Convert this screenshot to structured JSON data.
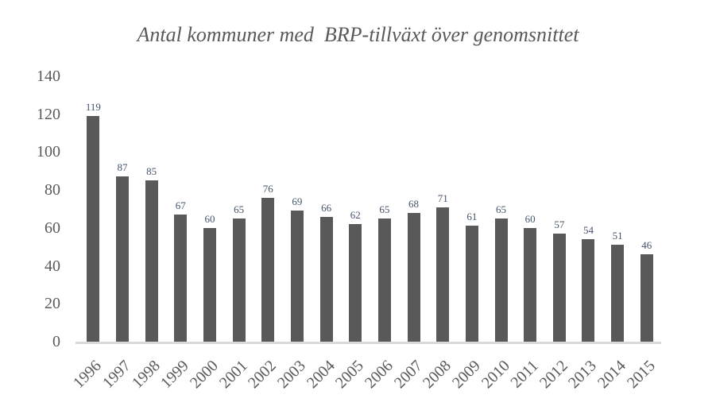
{
  "chart_data": {
    "type": "bar",
    "title": "Antal kommuner med  BRP-tillväxt över genomsnittet",
    "categories": [
      "1996",
      "1997",
      "1998",
      "1999",
      "2000",
      "2001",
      "2002",
      "2003",
      "2004",
      "2005",
      "2006",
      "2007",
      "2008",
      "2009",
      "2010",
      "2011",
      "2012",
      "2013",
      "2014",
      "2015"
    ],
    "values": [
      119,
      87,
      85,
      67,
      60,
      65,
      76,
      69,
      66,
      62,
      65,
      68,
      71,
      61,
      65,
      60,
      57,
      54,
      51,
      46
    ],
    "xlabel": "",
    "ylabel": "",
    "ylim": [
      0,
      140
    ],
    "y_ticks": [
      0,
      20,
      40,
      60,
      80,
      100,
      120,
      140
    ],
    "grid": false,
    "legend": false,
    "data_labels": true,
    "layout": {
      "x_tick_rotation_deg": -45,
      "legend_position": "none"
    },
    "colors": {
      "bar": "#595959",
      "data_label": "#44546a",
      "axis_label": "#595959",
      "title": "#595959",
      "baseline": "#d9d9d9",
      "background": "#ffffff"
    }
  }
}
